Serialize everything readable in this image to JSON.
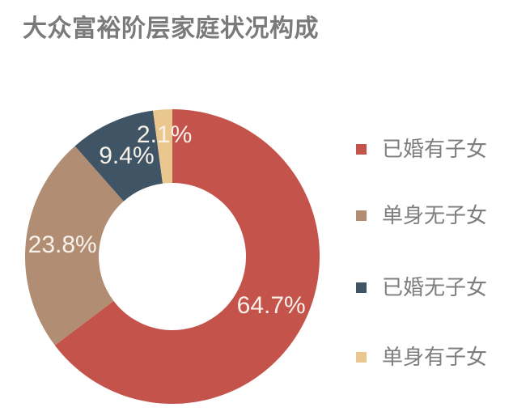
{
  "title": "大众富裕阶层家庭状况构成",
  "colors": {
    "background": "#FFFFFF",
    "title_text": "#7A7A7A",
    "legend_text": "#7E7E7E",
    "slice_value_text": "#F7F1EA"
  },
  "chart_data": {
    "type": "pie",
    "subtype": "donut",
    "title": "大众富裕阶层家庭状况构成",
    "direction": "clockwise",
    "start_angle_deg": 0,
    "inner_radius_fraction": 0.5,
    "legend_position": "right",
    "slices": [
      {
        "id": "married-with-children",
        "label": "已婚有子女",
        "value": 64.7,
        "display": "64.7%",
        "color": "#C4534B"
      },
      {
        "id": "single-no-children",
        "label": "单身无子女",
        "value": 23.8,
        "display": "23.8%",
        "color": "#B18E73"
      },
      {
        "id": "married-no-children",
        "label": "已婚无子女",
        "value": 9.4,
        "display": "9.4%",
        "color": "#3F5565"
      },
      {
        "id": "single-with-children",
        "label": "单身有子女",
        "value": 2.1,
        "display": "2.1%",
        "color": "#EAC78E"
      }
    ]
  }
}
